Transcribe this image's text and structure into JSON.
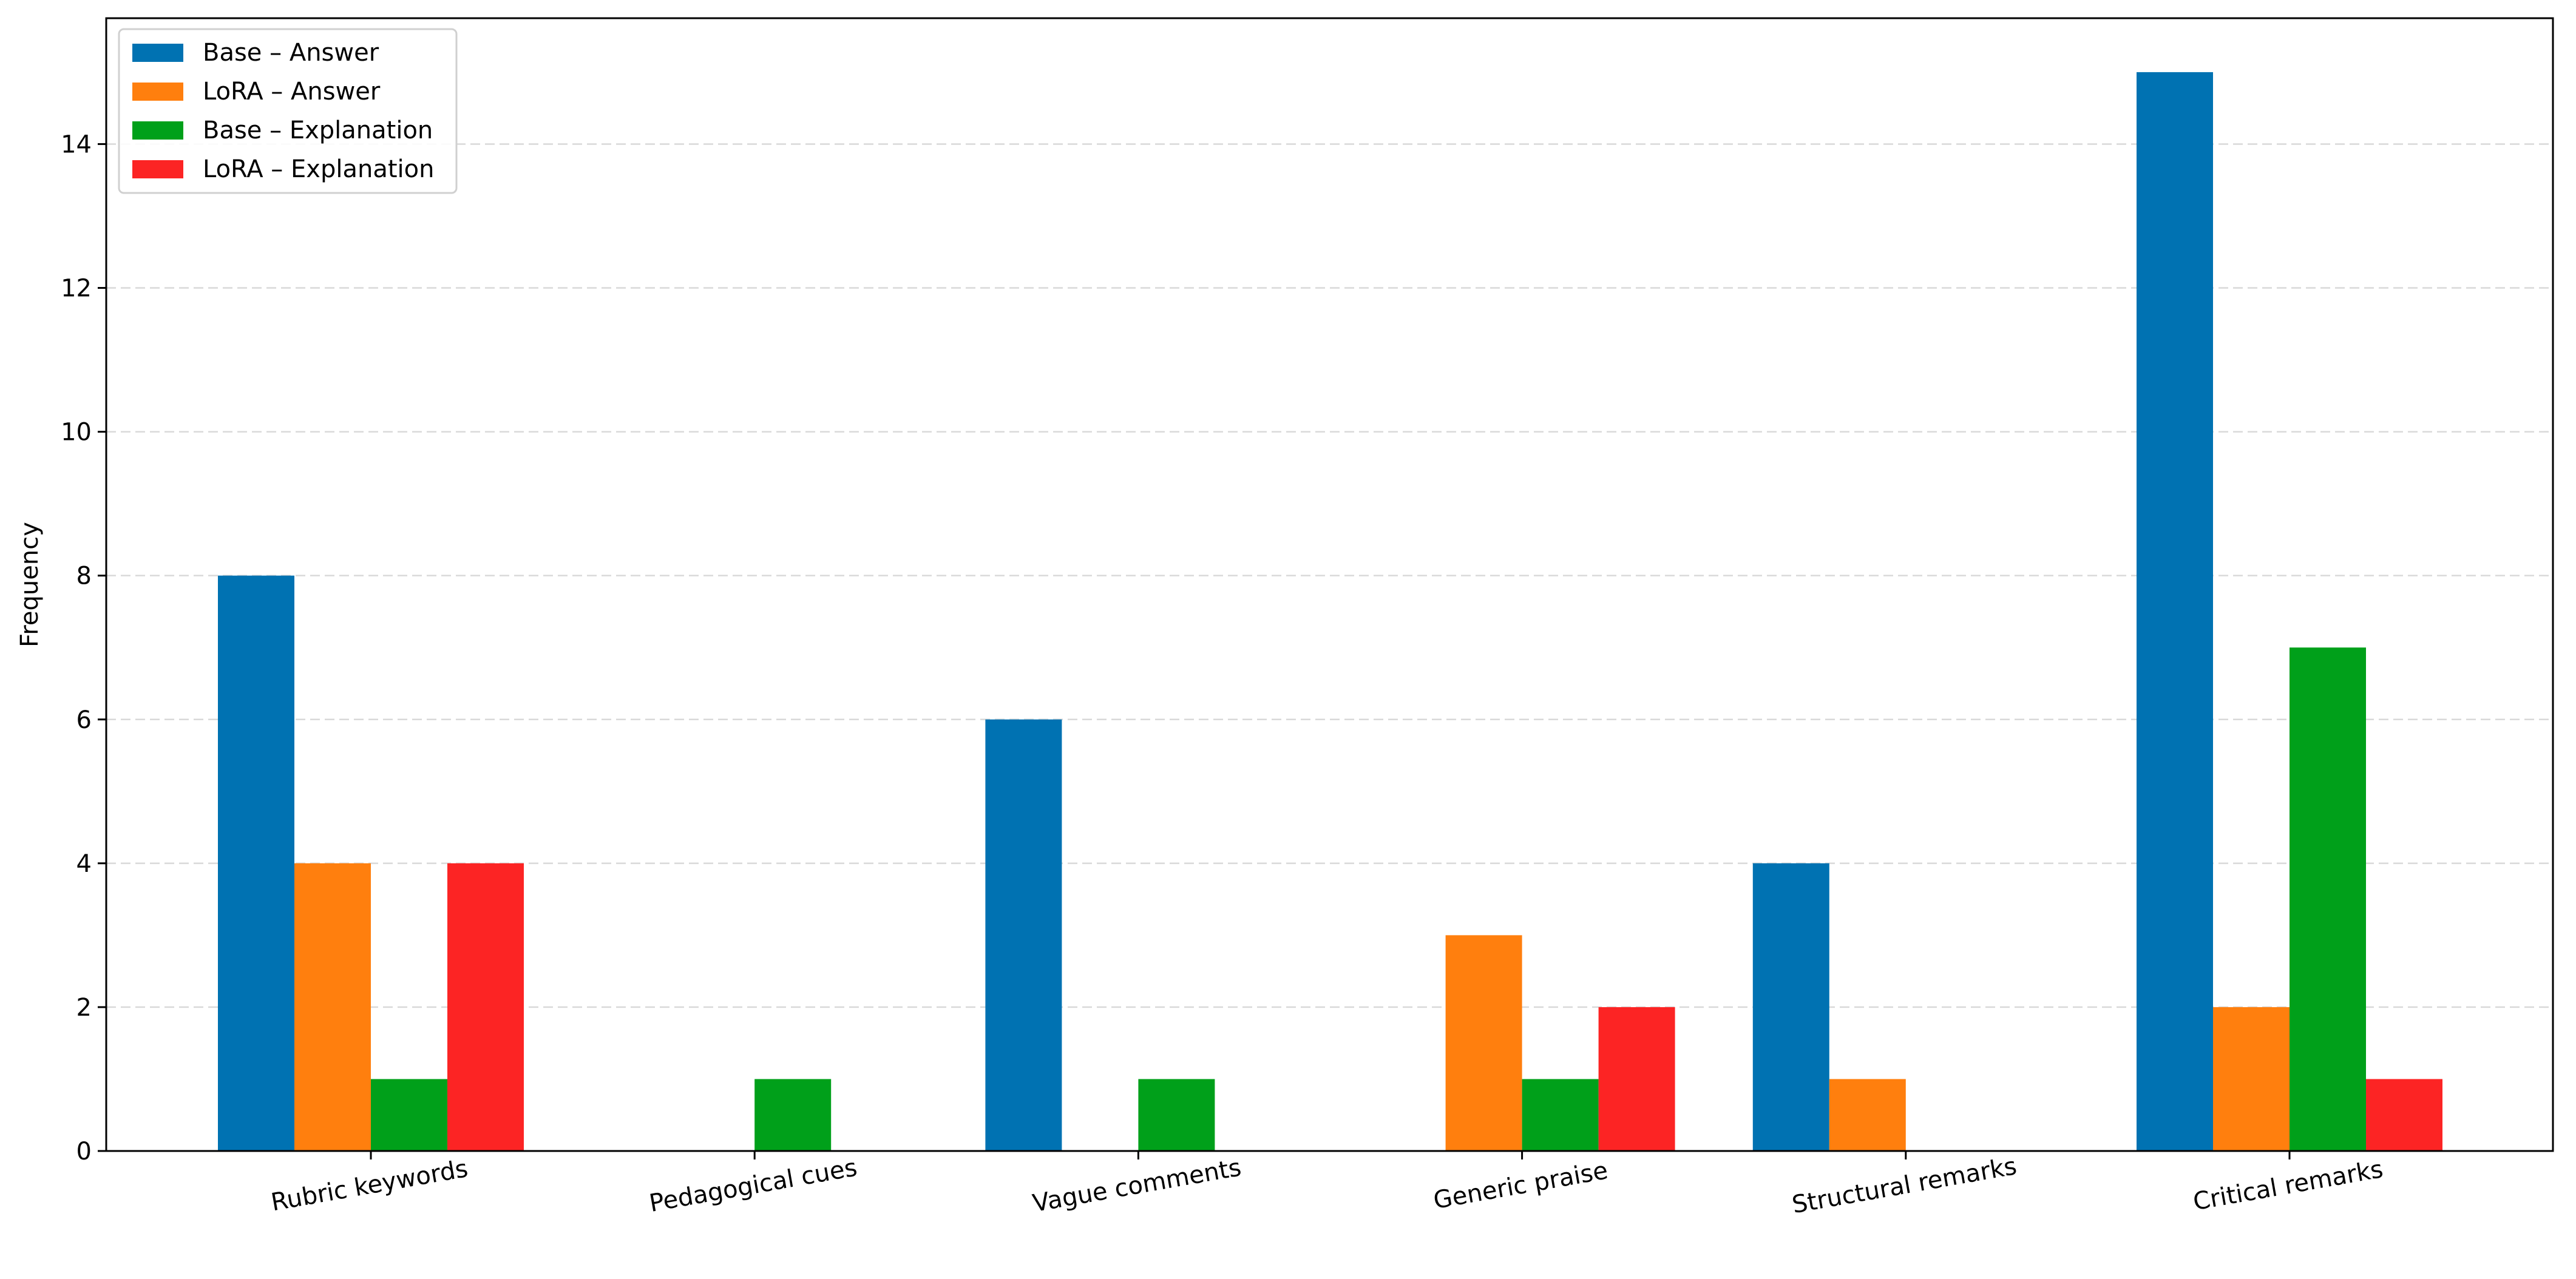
{
  "chart_data": {
    "type": "bar",
    "categories": [
      "Rubric keywords",
      "Pedagogical cues",
      "Vague comments",
      "Generic praise",
      "Structural remarks",
      "Critical remarks"
    ],
    "series": [
      {
        "name": "Base – Answer",
        "color": "#0072b2",
        "values": [
          8,
          0,
          6,
          0,
          4,
          15
        ]
      },
      {
        "name": "LoRA – Answer",
        "color": "#ff7f0e",
        "values": [
          4,
          0,
          0,
          3,
          1,
          2
        ]
      },
      {
        "name": "Base – Explanation",
        "color": "#00a01a",
        "values": [
          1,
          1,
          1,
          1,
          0,
          7
        ]
      },
      {
        "name": "LoRA – Explanation",
        "color": "#fc2424",
        "values": [
          4,
          0,
          0,
          2,
          0,
          1
        ]
      }
    ],
    "xlabel": "",
    "ylabel": "Frequency",
    "ylim": [
      0,
      15.75
    ],
    "yticks": [
      0,
      2,
      4,
      6,
      8,
      10,
      12,
      14
    ],
    "grid": "y-dashed",
    "legend": "top-left"
  }
}
